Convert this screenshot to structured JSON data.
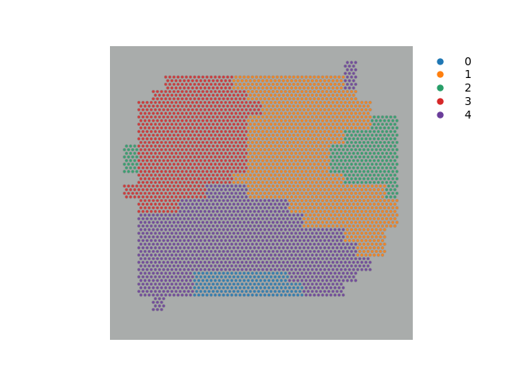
{
  "chart_data": {
    "type": "scatter",
    "tick_labels": false,
    "legend": "upper left",
    "series": [
      {
        "name": "0",
        "color": "#1f77b4"
      },
      {
        "name": "1",
        "color": "#ff7f0e"
      },
      {
        "name": "2",
        "color": "#279e68"
      },
      {
        "name": "3",
        "color": "#d62728"
      },
      {
        "name": "4",
        "color": "#6a3d9a"
      }
    ],
    "cells": [
      [
        null,
        null,
        null,
        null,
        null,
        null,
        null,
        null,
        null,
        null,
        null,
        null,
        null,
        null,
        null,
        null,
        null,
        null,
        null,
        null,
        null,
        null
      ],
      [
        null,
        null,
        null,
        null,
        null,
        null,
        null,
        null,
        null,
        null,
        null,
        null,
        null,
        null,
        null,
        null,
        null,
        4,
        null,
        null,
        null,
        null
      ],
      [
        null,
        null,
        null,
        null,
        3,
        3,
        3,
        3,
        3,
        1,
        1,
        1,
        1,
        1,
        1,
        1,
        1,
        4,
        null,
        null,
        null,
        null
      ],
      [
        null,
        null,
        null,
        3,
        3,
        3,
        3,
        3,
        3,
        3,
        1,
        1,
        1,
        1,
        1,
        1,
        1,
        1,
        null,
        null,
        null,
        null
      ],
      [
        null,
        null,
        3,
        3,
        3,
        3,
        3,
        3,
        3,
        3,
        3,
        1,
        1,
        1,
        1,
        1,
        1,
        1,
        1,
        null,
        null,
        null
      ],
      [
        null,
        null,
        3,
        3,
        3,
        3,
        3,
        3,
        3,
        3,
        1,
        1,
        1,
        1,
        1,
        1,
        1,
        1,
        1,
        2,
        2,
        null
      ],
      [
        null,
        null,
        3,
        3,
        3,
        3,
        3,
        3,
        3,
        3,
        1,
        1,
        1,
        1,
        1,
        1,
        1,
        2,
        2,
        2,
        2,
        null
      ],
      [
        null,
        2,
        3,
        3,
        3,
        3,
        3,
        3,
        3,
        3,
        1,
        1,
        1,
        1,
        1,
        1,
        2,
        2,
        2,
        2,
        2,
        null
      ],
      [
        null,
        2,
        3,
        3,
        3,
        3,
        3,
        3,
        3,
        3,
        1,
        1,
        1,
        1,
        1,
        1,
        2,
        2,
        2,
        2,
        2,
        null
      ],
      [
        null,
        null,
        3,
        3,
        3,
        3,
        3,
        3,
        3,
        1,
        1,
        1,
        1,
        1,
        1,
        1,
        1,
        2,
        2,
        2,
        2,
        null
      ],
      [
        null,
        3,
        3,
        3,
        3,
        3,
        3,
        4,
        4,
        4,
        1,
        1,
        1,
        1,
        1,
        1,
        1,
        1,
        1,
        1,
        2,
        null
      ],
      [
        null,
        null,
        3,
        3,
        3,
        4,
        4,
        4,
        4,
        4,
        4,
        4,
        4,
        1,
        1,
        1,
        1,
        1,
        1,
        1,
        1,
        null
      ],
      [
        null,
        null,
        4,
        4,
        4,
        4,
        4,
        4,
        4,
        4,
        4,
        4,
        4,
        4,
        1,
        1,
        1,
        1,
        1,
        1,
        1,
        null
      ],
      [
        null,
        null,
        4,
        4,
        4,
        4,
        4,
        4,
        4,
        4,
        4,
        4,
        4,
        4,
        4,
        4,
        4,
        1,
        1,
        1,
        null,
        null
      ],
      [
        null,
        null,
        4,
        4,
        4,
        4,
        4,
        4,
        4,
        4,
        4,
        4,
        4,
        4,
        4,
        4,
        4,
        4,
        1,
        1,
        null,
        null
      ],
      [
        null,
        null,
        4,
        4,
        4,
        4,
        4,
        4,
        4,
        4,
        4,
        4,
        4,
        4,
        4,
        4,
        4,
        4,
        4,
        null,
        null,
        null
      ],
      [
        null,
        null,
        4,
        4,
        4,
        4,
        0,
        0,
        0,
        0,
        0,
        0,
        0,
        4,
        4,
        4,
        4,
        4,
        null,
        null,
        null,
        null
      ],
      [
        null,
        null,
        4,
        4,
        4,
        4,
        0,
        0,
        0,
        0,
        0,
        0,
        0,
        0,
        4,
        4,
        4,
        null,
        null,
        null,
        null,
        null
      ],
      [
        null,
        null,
        null,
        4,
        null,
        null,
        null,
        null,
        null,
        null,
        null,
        null,
        null,
        null,
        null,
        null,
        null,
        null,
        null,
        null,
        null,
        null
      ],
      [
        null,
        null,
        null,
        null,
        null,
        null,
        null,
        null,
        null,
        null,
        null,
        null,
        null,
        null,
        null,
        null,
        null,
        null,
        null,
        null,
        null,
        null
      ],
      [
        null,
        null,
        null,
        null,
        null,
        null,
        null,
        null,
        null,
        null,
        null,
        null,
        null,
        null,
        null,
        null,
        null,
        null,
        null,
        null,
        null,
        null
      ]
    ]
  }
}
